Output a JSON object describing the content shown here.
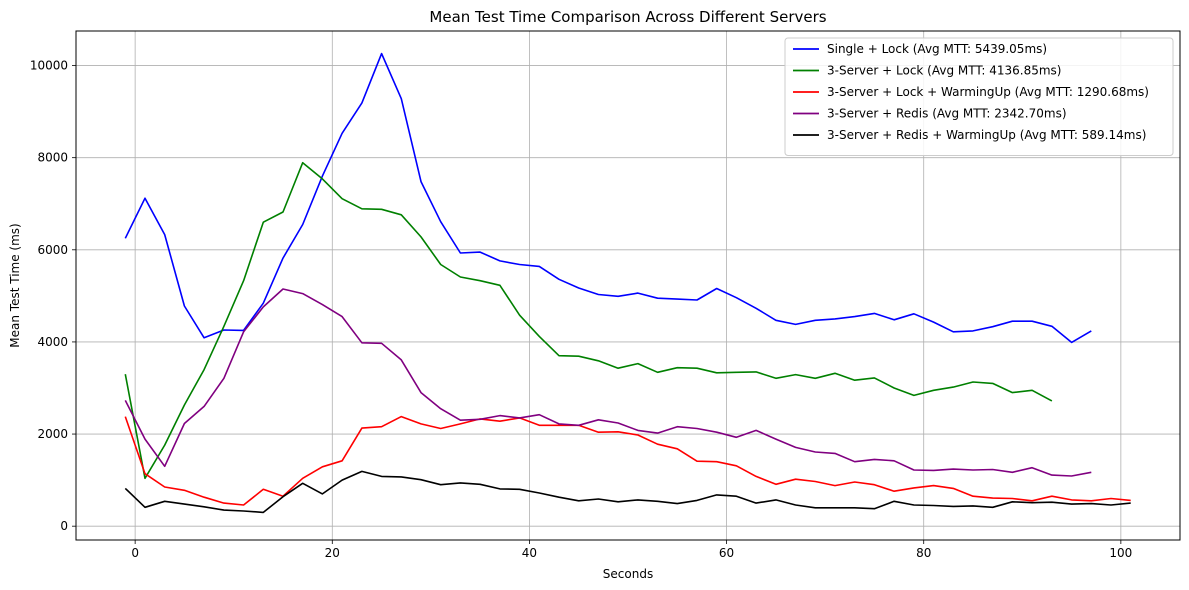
{
  "chart_data": {
    "type": "line",
    "title": "Mean Test Time Comparison Across Different Servers",
    "xlabel": "Seconds",
    "ylabel": "Mean Test Time (ms)",
    "xlim": [
      -6,
      106
    ],
    "ylim": [
      -300,
      10750
    ],
    "xticks": [
      0,
      20,
      40,
      60,
      80,
      100
    ],
    "yticks": [
      0,
      2000,
      4000,
      6000,
      8000,
      10000
    ],
    "grid": true,
    "legend_position": "top-right",
    "series": [
      {
        "name": "Single + Lock (Avg MTT: 5439.05ms)",
        "color": "#0000ff",
        "x": [
          -1,
          1,
          3,
          5,
          7,
          9,
          11,
          13,
          15,
          17,
          19,
          21,
          23,
          25,
          27,
          29,
          31,
          33,
          35,
          37,
          39,
          41,
          43,
          45,
          47,
          49,
          51,
          53,
          55,
          57,
          59,
          61,
          63,
          65,
          67,
          69,
          71,
          73,
          75,
          77,
          79,
          81,
          83,
          85,
          87,
          89,
          91,
          93,
          95,
          97
        ],
        "y": [
          6250,
          7120,
          6330,
          4780,
          4090,
          4260,
          4250,
          4840,
          5820,
          6550,
          7600,
          8530,
          9190,
          10260,
          9280,
          7480,
          6610,
          5930,
          5950,
          5760,
          5680,
          5640,
          5360,
          5170,
          5030,
          4990,
          5060,
          4950,
          4930,
          4910,
          5160,
          4960,
          4730,
          4470,
          4380,
          4470,
          4500,
          4550,
          4620,
          4480,
          4610,
          4430,
          4220,
          4240,
          4330,
          4450,
          4450,
          4340,
          3990,
          4240
        ]
      },
      {
        "name": "3-Server + Lock (Avg MTT: 4136.85ms)",
        "color": "#008000",
        "x": [
          -1,
          1,
          3,
          5,
          7,
          9,
          11,
          13,
          15,
          17,
          19,
          21,
          23,
          25,
          27,
          29,
          31,
          33,
          35,
          37,
          39,
          41,
          43,
          45,
          47,
          49,
          51,
          53,
          55,
          57,
          59,
          61,
          63,
          65,
          67,
          69,
          71,
          73,
          75,
          77,
          79,
          81,
          83,
          85,
          87,
          89,
          91,
          93
        ],
        "y": [
          3300,
          1040,
          1760,
          2630,
          3400,
          4340,
          5330,
          6600,
          6820,
          7890,
          7540,
          7110,
          6890,
          6880,
          6760,
          6280,
          5680,
          5410,
          5330,
          5230,
          4580,
          4120,
          3700,
          3690,
          3590,
          3430,
          3530,
          3340,
          3440,
          3430,
          3330,
          3340,
          3350,
          3210,
          3290,
          3210,
          3320,
          3170,
          3220,
          3000,
          2840,
          2950,
          3020,
          3130,
          3100,
          2900,
          2950,
          2720
        ]
      },
      {
        "name": "3-Server + Lock + WarmingUp (Avg MTT: 1290.68ms)",
        "color": "#ff0000",
        "x": [
          -1,
          1,
          3,
          5,
          7,
          9,
          11,
          13,
          15,
          17,
          19,
          21,
          23,
          25,
          27,
          29,
          31,
          33,
          35,
          37,
          39,
          41,
          43,
          45,
          47,
          49,
          51,
          53,
          55,
          57,
          59,
          61,
          63,
          65,
          67,
          69,
          71,
          73,
          75,
          77,
          79,
          81,
          83,
          85,
          87,
          89,
          91,
          93,
          95,
          97,
          99,
          101
        ],
        "y": [
          2380,
          1140,
          850,
          780,
          630,
          500,
          460,
          800,
          650,
          1040,
          1290,
          1420,
          2130,
          2160,
          2380,
          2220,
          2120,
          2220,
          2330,
          2280,
          2350,
          2190,
          2190,
          2190,
          2040,
          2050,
          1980,
          1780,
          1680,
          1410,
          1400,
          1310,
          1080,
          910,
          1020,
          970,
          880,
          960,
          900,
          760,
          830,
          880,
          820,
          650,
          610,
          600,
          550,
          650,
          570,
          550,
          600,
          560
        ]
      },
      {
        "name": "3-Server + Redis (Avg MTT: 2342.70ms)",
        "color": "#800080",
        "x": [
          -1,
          1,
          3,
          5,
          7,
          9,
          11,
          13,
          15,
          17,
          19,
          21,
          23,
          25,
          27,
          29,
          31,
          33,
          35,
          37,
          39,
          41,
          43,
          45,
          47,
          49,
          51,
          53,
          55,
          57,
          59,
          61,
          63,
          65,
          67,
          69,
          71,
          73,
          75,
          77,
          79,
          81,
          83,
          85,
          87,
          89,
          91,
          93,
          95,
          97
        ],
        "y": [
          2730,
          1890,
          1300,
          2230,
          2600,
          3210,
          4220,
          4760,
          5150,
          5050,
          4810,
          4550,
          3980,
          3970,
          3610,
          2900,
          2550,
          2300,
          2320,
          2400,
          2350,
          2420,
          2220,
          2190,
          2310,
          2240,
          2080,
          2020,
          2160,
          2120,
          2040,
          1930,
          2080,
          1890,
          1710,
          1610,
          1580,
          1400,
          1450,
          1420,
          1220,
          1210,
          1240,
          1220,
          1230,
          1170,
          1270,
          1110,
          1090,
          1170
        ]
      },
      {
        "name": "3-Server + Redis + WarmingUp (Avg MTT: 589.14ms)",
        "color": "#000000",
        "x": [
          -1,
          1,
          3,
          5,
          7,
          9,
          11,
          13,
          15,
          17,
          19,
          21,
          23,
          25,
          27,
          29,
          31,
          33,
          35,
          37,
          39,
          41,
          43,
          45,
          47,
          49,
          51,
          53,
          55,
          57,
          59,
          61,
          63,
          65,
          67,
          69,
          71,
          73,
          75,
          77,
          79,
          81,
          83,
          85,
          87,
          89,
          91,
          93,
          95,
          97,
          99,
          101
        ],
        "y": [
          820,
          410,
          540,
          480,
          420,
          350,
          330,
          300,
          640,
          930,
          700,
          1000,
          1190,
          1080,
          1070,
          1010,
          900,
          940,
          910,
          810,
          800,
          720,
          630,
          550,
          590,
          530,
          570,
          540,
          490,
          560,
          680,
          650,
          500,
          570,
          460,
          400,
          400,
          400,
          380,
          540,
          460,
          450,
          430,
          440,
          410,
          530,
          510,
          520,
          480,
          490,
          460,
          500
        ]
      }
    ]
  }
}
